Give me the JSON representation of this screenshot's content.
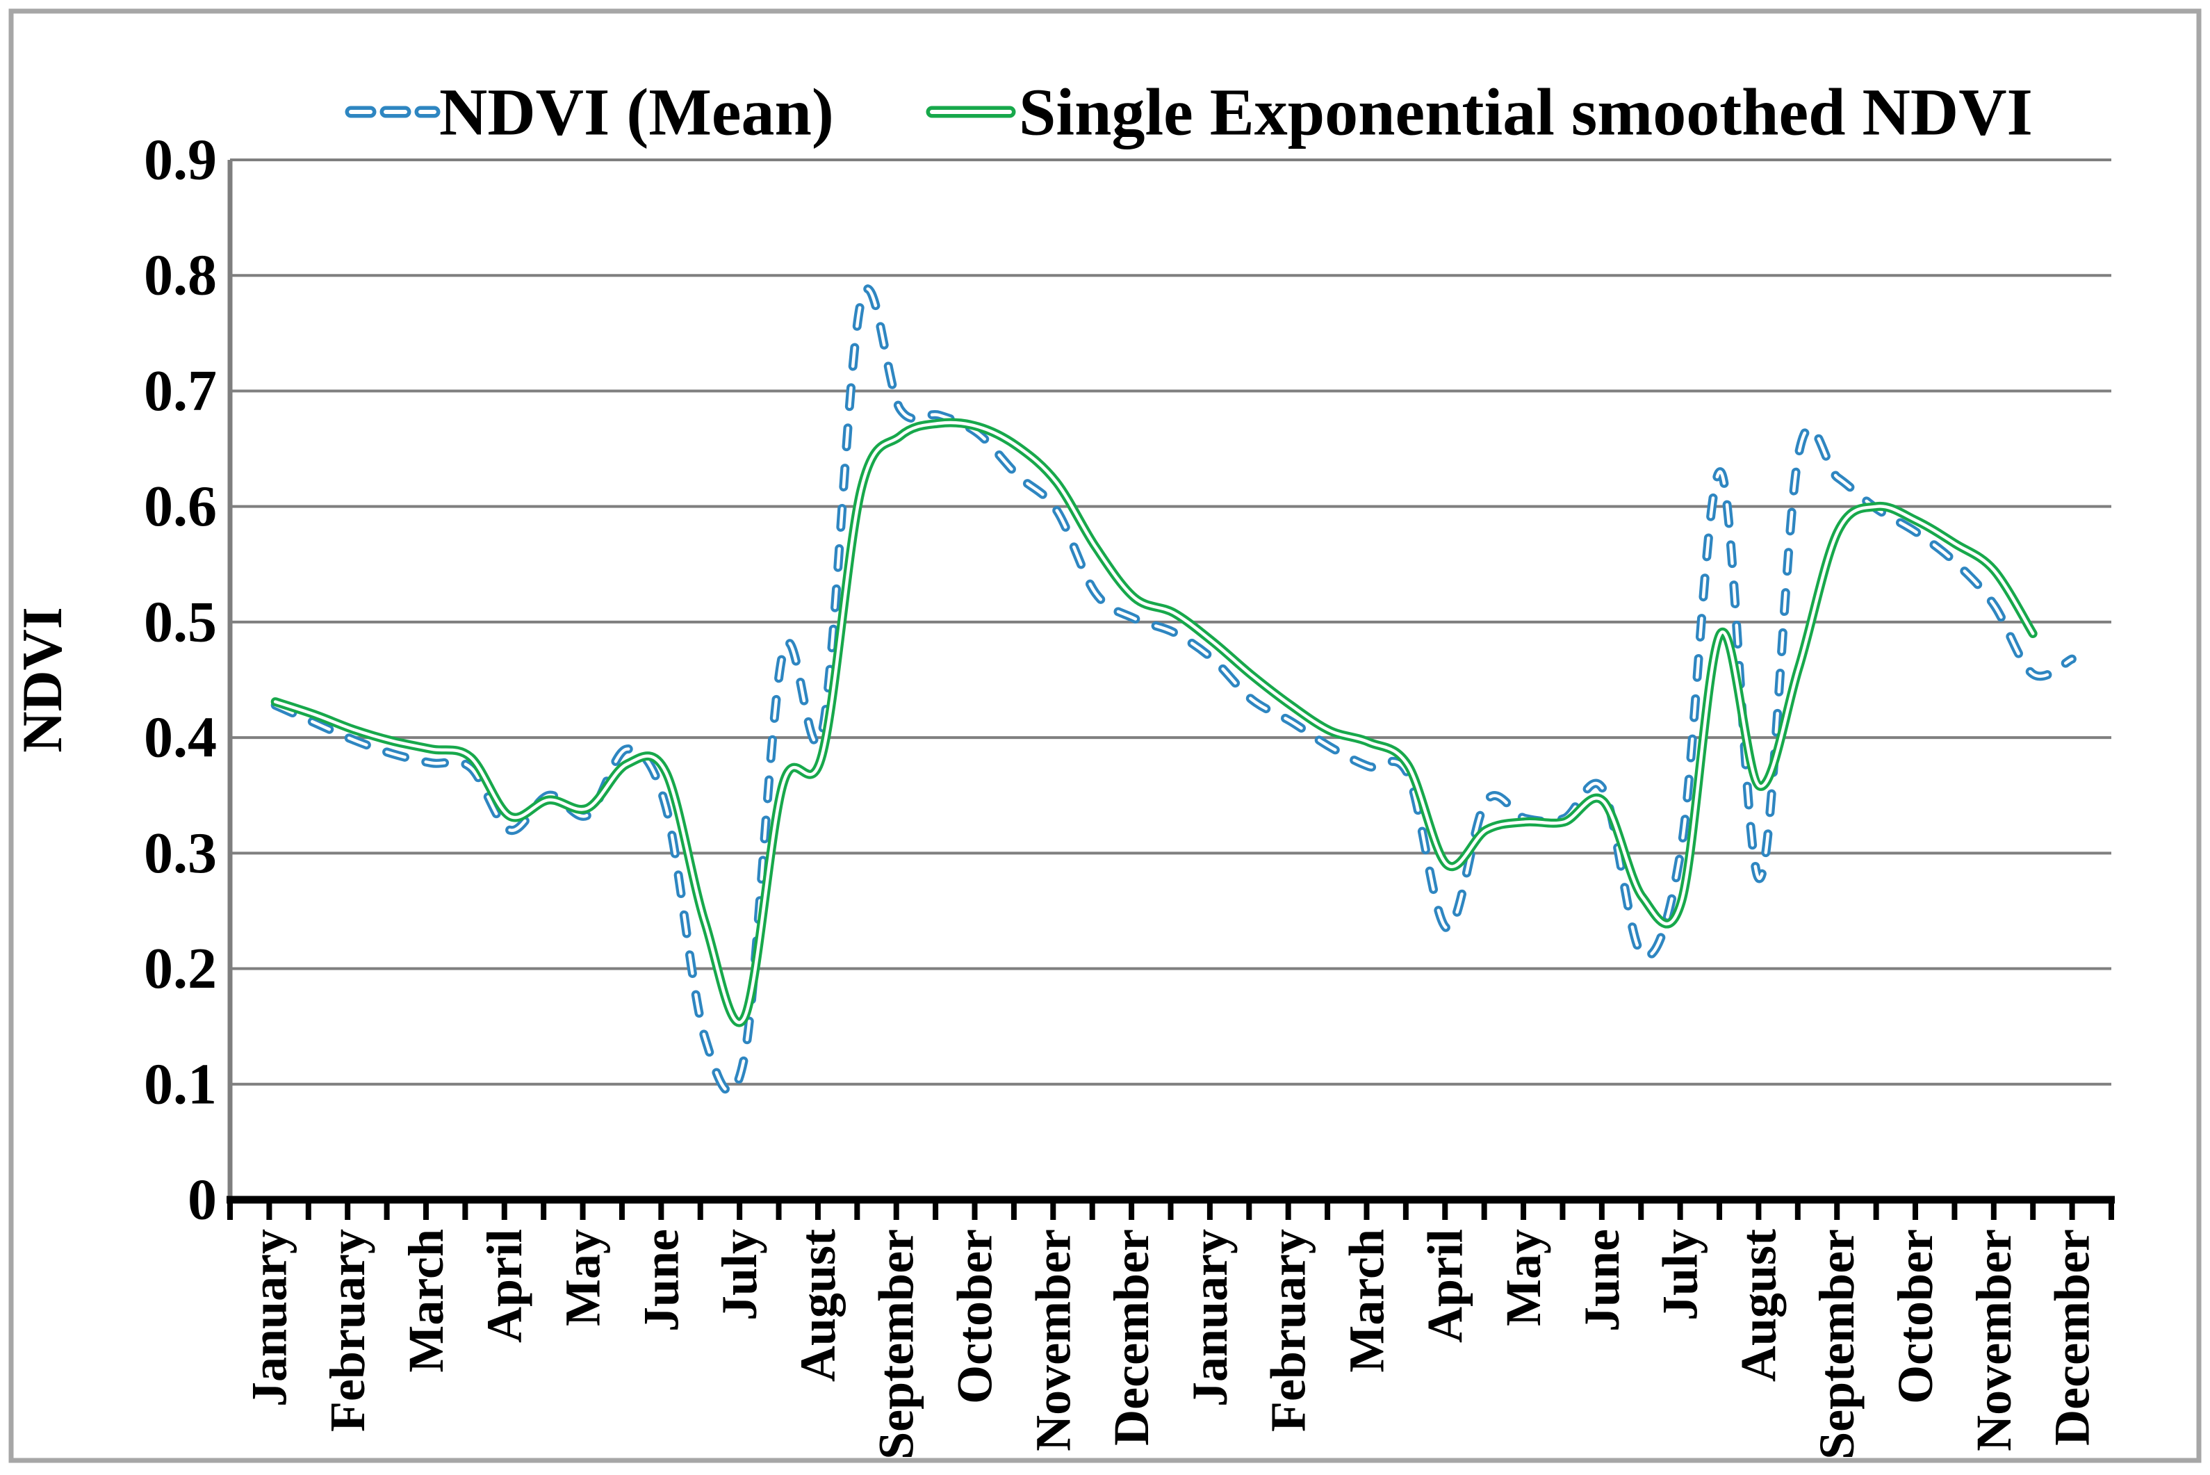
{
  "chart_data": {
    "type": "line",
    "title": "",
    "ylabel": "NDVI",
    "xlabel": "",
    "ylim": [
      0,
      0.9
    ],
    "y_tick_step": 0.1,
    "y_tick_labels": [
      "0",
      "0.1",
      "0.2",
      "0.3",
      "0.4",
      "0.5",
      "0.6",
      "0.7",
      "0.8",
      "0.9"
    ],
    "grid": "horizontal",
    "legend_position": "top",
    "points_per_month": 2,
    "categories": [
      "January",
      "February",
      "March",
      "April",
      "May",
      "June",
      "July",
      "August",
      "September",
      "October",
      "November",
      "December",
      "January",
      "February",
      "March",
      "April",
      "May",
      "June",
      "July",
      "August",
      "September",
      "October",
      "November",
      "December"
    ],
    "series": [
      {
        "name": "NDVI (Mean)",
        "color": "#2E86C1",
        "style": "dashed",
        "values": [
          0.428,
          0.413,
          0.398,
          0.386,
          0.378,
          0.374,
          0.32,
          0.35,
          0.333,
          0.39,
          0.34,
          0.14,
          0.122,
          0.474,
          0.405,
          0.778,
          0.684,
          0.679,
          0.663,
          0.627,
          0.597,
          0.525,
          0.503,
          0.491,
          0.468,
          0.433,
          0.414,
          0.392,
          0.375,
          0.368,
          0.235,
          0.345,
          0.33,
          0.33,
          0.355,
          0.212,
          0.305,
          0.63,
          0.278,
          0.645,
          0.625,
          0.598,
          0.578,
          0.552,
          0.515,
          0.455,
          0.468,
          null
        ]
      },
      {
        "name": "Single Exponential smoothed NDVI",
        "color": "#17A84B",
        "style": "solid",
        "values": [
          0.431,
          0.42,
          0.407,
          0.397,
          0.39,
          0.383,
          0.332,
          0.346,
          0.339,
          0.377,
          0.37,
          0.24,
          0.157,
          0.36,
          0.385,
          0.615,
          0.661,
          0.672,
          0.669,
          0.652,
          0.621,
          0.565,
          0.521,
          0.508,
          0.483,
          0.454,
          0.428,
          0.406,
          0.396,
          0.376,
          0.29,
          0.32,
          0.327,
          0.327,
          0.345,
          0.262,
          0.258,
          0.49,
          0.358,
          0.46,
          0.578,
          0.6,
          0.588,
          0.568,
          0.545,
          0.49,
          null,
          null
        ]
      }
    ]
  },
  "legend": {
    "items": [
      {
        "label": "NDVI (Mean)",
        "color": "#2E86C1",
        "style": "dashed"
      },
      {
        "label": "Single Exponential smoothed NDVI",
        "color": "#17A84B",
        "style": "solid"
      }
    ]
  },
  "axes": {
    "y_title": "NDVI"
  },
  "colors": {
    "blue_series": "#2E86C1",
    "green_series": "#17A84B",
    "gridline": "#7F7F7F",
    "axis_line": "#000000",
    "outer_border": "#A6A6A6",
    "line_core": "#FFFFFF"
  }
}
